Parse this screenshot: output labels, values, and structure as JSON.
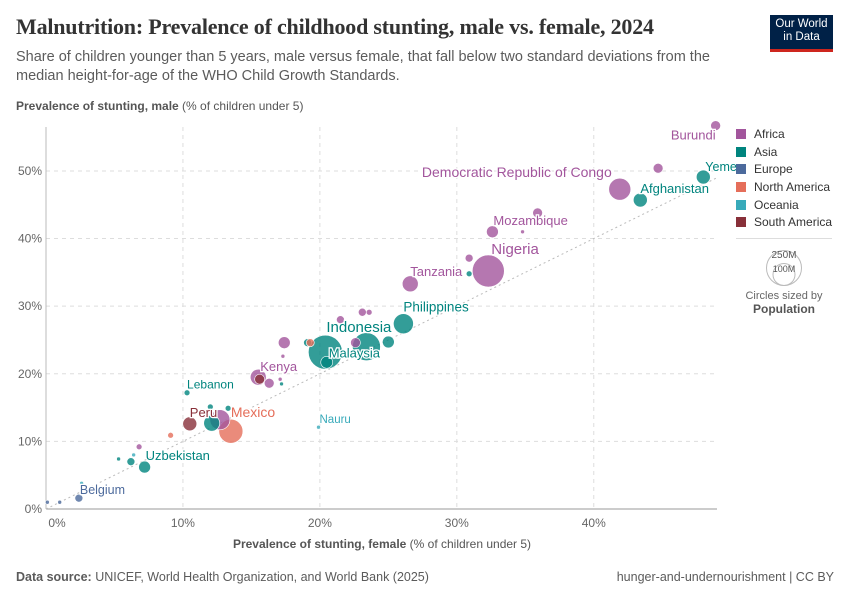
{
  "header": {
    "title": "Malnutrition: Prevalence of childhood stunting, male vs. female, 2024",
    "subtitle": "Share of children younger than 5 years, male versus female, that fall below two standard deviations from the median height-for-age of the WHO Child Growth Standards.",
    "logo_line1": "Our World",
    "logo_line2": "in Data"
  },
  "footer": {
    "source_label": "Data source:",
    "source_text": " UNICEF, World Health Organization, and World Bank (2025)",
    "right": "hunger-and-undernourishment | CC BY"
  },
  "legend": {
    "size_title": "Circles sized by",
    "size_var": "Population",
    "size_values": [
      "250M",
      "100M"
    ]
  },
  "chart_data": {
    "type": "scatter",
    "title": "Malnutrition: Prevalence of childhood stunting, male vs. female, 2024",
    "xlabel_bold": "Prevalence of stunting, female",
    "xlabel_unit": " (% of children under 5)",
    "ylabel_bold": "Prevalence of stunting, male",
    "ylabel_unit": " (% of children under 5)",
    "xlim": [
      0,
      49
    ],
    "ylim": [
      0,
      56.5
    ],
    "xticks": [
      "0%",
      "10%",
      "20%",
      "30%",
      "40%"
    ],
    "yticks": [
      "0%",
      "10%",
      "20%",
      "30%",
      "40%",
      "50%"
    ],
    "grid": true,
    "reference_line": "y = x",
    "legend_placement": "right",
    "size_variable": "Population",
    "regions": [
      {
        "name": "Africa",
        "color": "#a2559c"
      },
      {
        "name": "Asia",
        "color": "#00847e"
      },
      {
        "name": "Europe",
        "color": "#4c6a9c"
      },
      {
        "name": "North America",
        "color": "#e56e5a"
      },
      {
        "name": "Oceania",
        "color": "#38aaba"
      },
      {
        "name": "South America",
        "color": "#883039"
      }
    ],
    "points": [
      {
        "label": "Burundi",
        "region": "Africa",
        "x": 48.9,
        "y": 56.7,
        "pop": 20
      },
      {
        "label": "",
        "region": "Africa",
        "x": 44.7,
        "y": 50.4,
        "pop": 20
      },
      {
        "label": "Yemen",
        "region": "Asia",
        "x": 48.0,
        "y": 49.1,
        "pop": 40
      },
      {
        "label": "Afghanistan",
        "region": "Asia",
        "x": 43.4,
        "y": 45.7,
        "pop": 40
      },
      {
        "label": "Democratic Republic of Congo",
        "region": "Africa",
        "x": 41.9,
        "y": 47.3,
        "pop": 99
      },
      {
        "label": "Mozambique",
        "region": "Africa",
        "x": 32.6,
        "y": 41.0,
        "pop": 29
      },
      {
        "label": "",
        "region": "Africa",
        "x": 34.8,
        "y": 41.0,
        "pop": 3
      },
      {
        "label": "",
        "region": "Africa",
        "x": 35.9,
        "y": 43.8,
        "pop": 20
      },
      {
        "label": "Nigeria",
        "region": "Africa",
        "x": 32.3,
        "y": 35.2,
        "pop": 209
      },
      {
        "label": "",
        "region": "Africa",
        "x": 30.9,
        "y": 37.1,
        "pop": 13
      },
      {
        "label": "",
        "region": "Asia",
        "x": 30.9,
        "y": 34.8,
        "pop": 7
      },
      {
        "label": "Tanzania",
        "region": "Africa",
        "x": 26.6,
        "y": 33.3,
        "pop": 52
      },
      {
        "label": "",
        "region": "Africa",
        "x": 28.8,
        "y": 34.9,
        "pop": 7
      },
      {
        "label": "Philippines",
        "region": "Asia",
        "x": 26.1,
        "y": 27.4,
        "pop": 82
      },
      {
        "label": "Indonesia",
        "region": "Asia",
        "x": 20.4,
        "y": 23.2,
        "pop": 236
      },
      {
        "label": "",
        "region": "Asia",
        "x": 23.4,
        "y": 24.0,
        "pop": 160
      },
      {
        "label": "Malaysia",
        "region": "Asia",
        "x": 20.5,
        "y": 21.7,
        "pop": 29
      },
      {
        "label": "",
        "region": "Africa",
        "x": 22.6,
        "y": 24.6,
        "pop": 20
      },
      {
        "label": "",
        "region": "Asia",
        "x": 25.0,
        "y": 24.7,
        "pop": 29
      },
      {
        "label": "",
        "region": "Africa",
        "x": 21.5,
        "y": 28.0,
        "pop": 13
      },
      {
        "label": "",
        "region": "Africa",
        "x": 23.1,
        "y": 29.1,
        "pop": 13
      },
      {
        "label": "",
        "region": "Africa",
        "x": 23.6,
        "y": 29.1,
        "pop": 7
      },
      {
        "label": "",
        "region": "Africa",
        "x": 17.4,
        "y": 24.6,
        "pop": 29
      },
      {
        "label": "",
        "region": "Africa",
        "x": 17.3,
        "y": 22.6,
        "pop": 3
      },
      {
        "label": "",
        "region": "Asia",
        "x": 19.1,
        "y": 24.6,
        "pop": 13
      },
      {
        "label": "",
        "region": "North America",
        "x": 19.3,
        "y": 24.6,
        "pop": 13
      },
      {
        "label": "Kenya",
        "region": "Africa",
        "x": 15.5,
        "y": 19.5,
        "pop": 52
      },
      {
        "label": "",
        "region": "South America",
        "x": 15.6,
        "y": 19.2,
        "pop": 20
      },
      {
        "label": "",
        "region": "Africa",
        "x": 16.3,
        "y": 18.6,
        "pop": 20
      },
      {
        "label": "",
        "region": "Africa",
        "x": 17.1,
        "y": 19.2,
        "pop": 3
      },
      {
        "label": "",
        "region": "Asia",
        "x": 17.2,
        "y": 18.5,
        "pop": 3
      },
      {
        "label": "Lebanon",
        "region": "Asia",
        "x": 10.3,
        "y": 17.2,
        "pop": 7
      },
      {
        "label": "Peru",
        "region": "South America",
        "x": 10.5,
        "y": 12.6,
        "pop": 40
      },
      {
        "label": "",
        "region": "Asia",
        "x": 12.0,
        "y": 15.1,
        "pop": 7
      },
      {
        "label": "",
        "region": "Asia",
        "x": 13.3,
        "y": 14.9,
        "pop": 7
      },
      {
        "label": "",
        "region": "Africa",
        "x": 12.7,
        "y": 13.2,
        "pop": 82
      },
      {
        "label": "",
        "region": "Asia",
        "x": 12.1,
        "y": 12.7,
        "pop": 52
      },
      {
        "label": "Mexico",
        "region": "North America",
        "x": 13.5,
        "y": 11.5,
        "pop": 118
      },
      {
        "label": "Nauru",
        "region": "Oceania",
        "x": 19.9,
        "y": 12.1,
        "pop": 3
      },
      {
        "label": "",
        "region": "North America",
        "x": 9.1,
        "y": 10.9,
        "pop": 7
      },
      {
        "label": "",
        "region": "Africa",
        "x": 6.8,
        "y": 9.2,
        "pop": 7
      },
      {
        "label": "",
        "region": "Asia",
        "x": 5.3,
        "y": 7.4,
        "pop": 3
      },
      {
        "label": "",
        "region": "Oceania",
        "x": 6.4,
        "y": 8.0,
        "pop": 3
      },
      {
        "label": "",
        "region": "Asia",
        "x": 6.2,
        "y": 7.0,
        "pop": 13
      },
      {
        "label": "Uzbekistan",
        "region": "Asia",
        "x": 7.2,
        "y": 6.2,
        "pop": 29
      },
      {
        "label": "",
        "region": "Oceania",
        "x": 2.6,
        "y": 3.8,
        "pop": 3
      },
      {
        "label": "Belgium",
        "region": "Europe",
        "x": 2.4,
        "y": 1.6,
        "pop": 13
      },
      {
        "label": "",
        "region": "Europe",
        "x": 1.0,
        "y": 1.0,
        "pop": 3
      },
      {
        "label": "",
        "region": "Europe",
        "x": 0.1,
        "y": 1.0,
        "pop": 3
      }
    ]
  }
}
